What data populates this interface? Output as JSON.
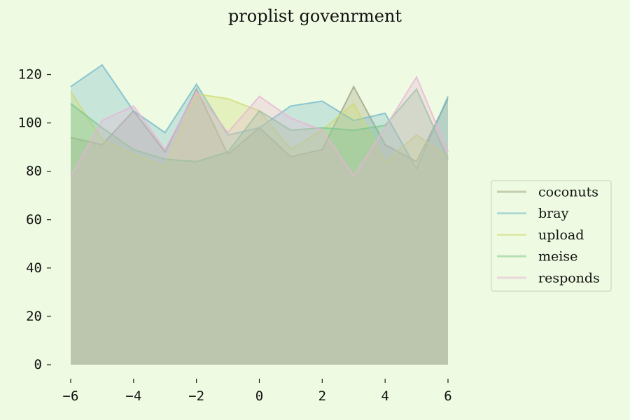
{
  "chart_data": {
    "type": "area",
    "title": "proplist govenrment",
    "xlabel": "",
    "ylabel": "",
    "x": [
      -6,
      -5,
      -4,
      -3,
      -2,
      -1,
      0,
      1,
      2,
      3,
      4,
      5,
      6
    ],
    "xlim": [
      -6,
      6
    ],
    "ylim": [
      0,
      130
    ],
    "xticks": [
      -6,
      -4,
      -2,
      0,
      2,
      4,
      6
    ],
    "yticks": [
      0,
      20,
      40,
      60,
      80,
      100,
      120
    ],
    "grid": false,
    "legend_position": "right",
    "series": [
      {
        "name": "coconuts",
        "color": "#9e9e7c",
        "values": [
          94,
          91,
          105,
          88,
          114,
          87,
          98,
          86,
          89,
          115,
          91,
          84,
          110
        ]
      },
      {
        "name": "bray",
        "color": "#6fb7c9",
        "values": [
          115,
          124,
          105,
          96,
          116,
          95,
          98,
          107,
          109,
          101,
          104,
          81,
          111
        ]
      },
      {
        "name": "upload",
        "color": "#cddb6e",
        "values": [
          113,
          93,
          87,
          82,
          112,
          110,
          105,
          89,
          97,
          108,
          84,
          95,
          86
        ]
      },
      {
        "name": "meise",
        "color": "#7cc58c",
        "values": [
          108,
          98,
          89,
          85,
          84,
          88,
          105,
          97,
          98,
          97,
          99,
          114,
          85
        ]
      },
      {
        "name": "responds",
        "color": "#e8b3d4",
        "values": [
          78,
          101,
          107,
          89,
          113,
          96,
          111,
          102,
          97,
          78,
          98,
          119,
          88
        ]
      }
    ]
  }
}
